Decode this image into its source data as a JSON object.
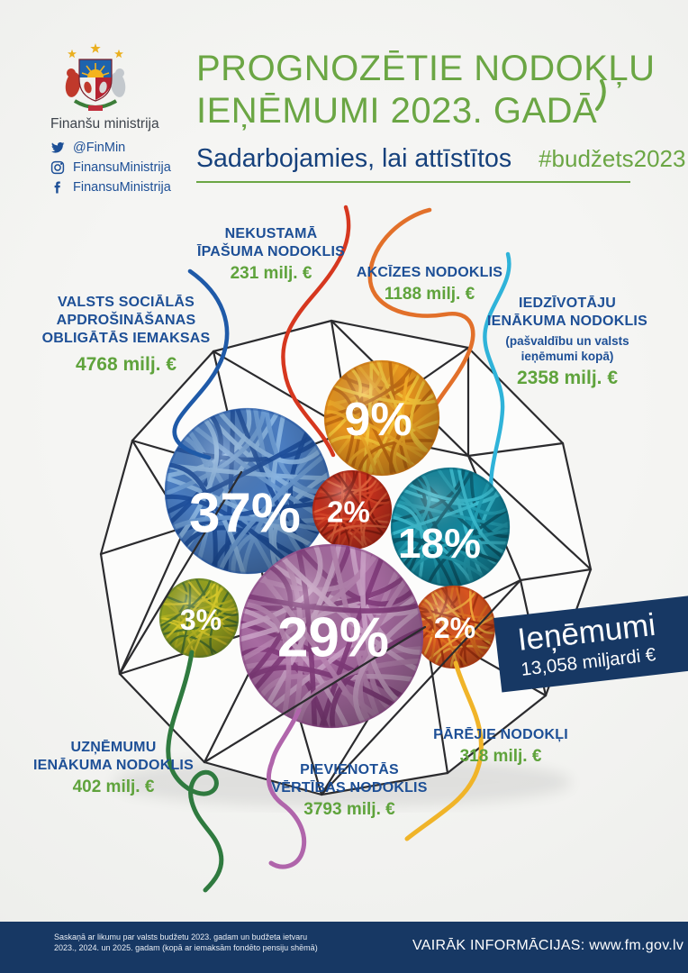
{
  "page": {
    "bg": "#f1f1ef",
    "accent_green": "#6ba644",
    "navy": "#1d4f96",
    "dark_navy": "#173864",
    "wire": "#2b2b2e"
  },
  "header": {
    "ministry_name": "Finanšu ministrija",
    "social": [
      {
        "icon": "twitter-icon",
        "handle": "@FinMin"
      },
      {
        "icon": "instagram-icon",
        "handle": "FinansuMinistrija"
      },
      {
        "icon": "facebook-icon",
        "handle": "FinansuMinistrija"
      }
    ],
    "title_line1": "PROGNOZĒTIE NODOKĻU",
    "title_line2": "IEŅĒMUMI 2023. GADĀ",
    "subtitle": "Sadarbojamies, lai attīstītos",
    "hashtag": "#budžets2023"
  },
  "badge": {
    "label": "Ieņēmumi",
    "value": "13,058 miljardi €"
  },
  "labels": {
    "nekustama": {
      "lines": [
        "NEKUSTAMĀ",
        "ĪPAŠUMA NODOKLIS"
      ],
      "value": "231 milj. €"
    },
    "akcizes": {
      "lines": [
        "AKCĪZES NODOKLIS"
      ],
      "value": "1188 milj. €"
    },
    "iedzivotaju": {
      "lines": [
        "IEDZĪVOTĀJU",
        "IENĀKUMA NODOKLIS"
      ],
      "note": [
        "(pašvaldību un valsts",
        "ieņēmumi kopā)"
      ],
      "value": "2358 milj. €"
    },
    "vsaoi": {
      "lines": [
        "VALSTS SOCIĀLĀS",
        "APDROŠINĀŠANAS",
        "OBLIGĀTĀS IEMAKSAS"
      ],
      "value": "4768 milj. €"
    },
    "uznemumu": {
      "lines": [
        "UZŅĒMUMU",
        "IENĀKUMA NODOKLIS"
      ],
      "value": "402 milj. €"
    },
    "pvn": {
      "lines": [
        "PIEVIENOTĀS",
        "VĒRTĪBAS NODOKLIS"
      ],
      "value": "3793 milj. €"
    },
    "parejie": {
      "lines": [
        "PĀRĒJIE NODOKĻI"
      ],
      "value": "318 milj. €"
    }
  },
  "chart_data": {
    "type": "pie",
    "title": "Prognozētie nodokļu ieņēmumi 2023. gadā",
    "total_label": "Ieņēmumi",
    "total_value": "13,058 miljardi €",
    "unit": "milj. €",
    "series": [
      {
        "name": "Valsts sociālās apdrošināšanas obligātās iemaksas",
        "value": 4768,
        "percent": 37,
        "color": "#4a7cc0"
      },
      {
        "name": "Pievienotās vērtības nodoklis",
        "value": 3793,
        "percent": 29,
        "color": "#a76ba1"
      },
      {
        "name": "Iedzīvotāju ienākuma nodoklis (pašvaldību un valsts ieņēmumi kopā)",
        "value": 2358,
        "percent": 18,
        "color": "#13889f"
      },
      {
        "name": "Akcīzes nodoklis",
        "value": 1188,
        "percent": 9,
        "color": "#e6941e"
      },
      {
        "name": "Uzņēmumu ienākuma nodoklis",
        "value": 402,
        "percent": 3,
        "color": "#97a31f"
      },
      {
        "name": "Pārējie nodokļi",
        "value": 318,
        "percent": 2,
        "color": "#d75420"
      },
      {
        "name": "Nekustamā īpašuma nodoklis",
        "value": 231,
        "percent": 2,
        "color": "#c5301d"
      }
    ]
  },
  "footer": {
    "note_line1": "Saskaņā ar likumu par valsts budžetu 2023. gadam un budžeta ietvaru",
    "note_line2": "2023., 2024. un 2025. gadam (kopā ar iemaksām fondēto pensiju shēmā)",
    "more_info": "VAIRĀK INFORMĀCIJAS: www.fm.gov.lv"
  }
}
